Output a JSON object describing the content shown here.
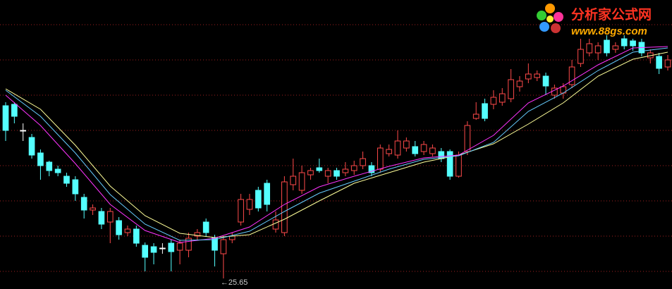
{
  "logo": {
    "name": "分析家公式网",
    "url": "www.88gs.com"
  },
  "chart_data": {
    "type": "candlestick",
    "ylim": [
      25.35,
      33.55
    ],
    "gridlines": [
      32.85,
      31.85,
      30.85,
      29.85,
      28.85,
      27.85,
      26.85,
      25.85
    ],
    "grid": true,
    "grid_color": "#a02020",
    "up_color": "#ff4a4a",
    "down_color": "#54ffff",
    "flat_color": "#ffffff",
    "annotations": [
      {
        "text": "←25.65",
        "value": 25.65
      }
    ],
    "open": [
      30.55,
      30.59,
      29.85,
      29.65,
      29.21,
      28.95,
      28.75,
      28.55,
      28.45,
      27.95,
      27.59,
      27.55,
      27.25,
      27.29,
      26.95,
      27.05,
      26.59,
      26.55,
      26.51,
      26.65,
      26.45,
      26.45,
      26.85,
      27.25,
      26.81,
      26.35,
      26.75,
      27.25,
      27.61,
      28.15,
      28.35,
      27.05,
      26.95,
      28.31,
      28.15,
      28.59,
      28.79,
      28.55,
      28.71,
      28.65,
      28.71,
      28.85,
      28.85,
      28.75,
      29.19,
      29.15,
      29.35,
      29.39,
      29.25,
      29.19,
      29.25,
      29.25,
      28.55,
      29.25,
      30.19,
      30.61,
      30.59,
      30.65,
      30.75,
      31.09,
      31.31,
      31.35,
      31.39,
      30.85,
      30.91,
      31.15,
      31.75,
      32.05,
      32.05,
      32.41,
      32.15,
      32.45,
      32.39,
      32.35,
      31.91,
      31.95,
      31.65
    ],
    "high": [
      30.65,
      30.65,
      30.05,
      29.75,
      29.31,
      28.99,
      28.85,
      28.65,
      28.55,
      28.05,
      27.75,
      27.65,
      27.65,
      27.39,
      27.15,
      27.15,
      26.67,
      26.65,
      26.65,
      26.75,
      26.75,
      26.95,
      27.05,
      27.35,
      26.89,
      26.85,
      26.95,
      28.05,
      28.05,
      28.25,
      28.45,
      27.55,
      28.55,
      29.05,
      28.85,
      28.79,
      29.05,
      28.79,
      28.79,
      28.95,
      28.99,
      29.25,
      28.95,
      29.45,
      29.45,
      29.85,
      29.65,
      29.55,
      29.55,
      29.45,
      29.35,
      29.31,
      29.25,
      30.11,
      30.65,
      30.75,
      30.99,
      31.05,
      31.59,
      31.39,
      31.75,
      31.55,
      31.49,
      31.15,
      31.19,
      31.85,
      32.45,
      32.45,
      32.35,
      32.55,
      32.35,
      32.55,
      32.45,
      32.45,
      32.15,
      32.05,
      31.99
    ],
    "low": [
      29.55,
      30.05,
      29.55,
      29.05,
      28.45,
      28.55,
      28.55,
      28.25,
      27.85,
      27.35,
      27.45,
      27.05,
      26.65,
      26.75,
      26.85,
      26.55,
      25.85,
      26.05,
      26.35,
      25.85,
      26.05,
      26.25,
      26.75,
      26.85,
      25.99,
      25.65,
      26.65,
      27.15,
      27.45,
      27.55,
      27.55,
      26.95,
      26.85,
      28.15,
      28.05,
      28.45,
      28.65,
      28.35,
      28.45,
      28.55,
      28.59,
      28.75,
      28.55,
      28.65,
      29.11,
      29.05,
      29.25,
      29.11,
      29.15,
      29.11,
      28.95,
      28.45,
      28.51,
      29.15,
      30.15,
      30.11,
      30.45,
      30.55,
      30.65,
      30.95,
      31.19,
      31.25,
      30.85,
      30.75,
      30.75,
      31.05,
      31.65,
      31.95,
      31.85,
      31.95,
      32.05,
      32.15,
      32.11,
      31.95,
      31.75,
      31.45,
      31.55
    ],
    "close": [
      29.85,
      30.25,
      29.85,
      29.15,
      28.85,
      28.71,
      28.65,
      28.35,
      28.05,
      27.59,
      27.65,
      27.19,
      27.55,
      26.89,
      27.05,
      26.65,
      26.25,
      26.39,
      26.51,
      26.41,
      26.65,
      26.79,
      26.95,
      26.95,
      26.45,
      26.75,
      26.85,
      27.89,
      27.89,
      27.65,
      27.75,
      27.31,
      28.39,
      28.55,
      28.65,
      28.71,
      28.71,
      28.71,
      28.55,
      28.75,
      28.85,
      29.05,
      28.65,
      29.35,
      29.31,
      29.55,
      29.55,
      29.19,
      29.45,
      29.35,
      29.05,
      28.55,
      29.15,
      29.99,
      30.31,
      30.19,
      30.79,
      30.89,
      31.29,
      31.25,
      31.45,
      31.45,
      31.11,
      31.05,
      31.09,
      31.65,
      32.15,
      32.31,
      32.25,
      32.05,
      32.25,
      32.25,
      32.25,
      32.05,
      32.05,
      31.61,
      31.85
    ],
    "series": [
      {
        "color": "#ffff99",
        "x": [
          0,
          4,
          8,
          12,
          16,
          20,
          24,
          28,
          32,
          36,
          40,
          44,
          48,
          52,
          56,
          60,
          64,
          68,
          72,
          76
        ],
        "values": [
          31.03,
          30.45,
          29.43,
          28.27,
          27.43,
          26.93,
          26.81,
          26.89,
          27.33,
          27.85,
          28.35,
          28.65,
          28.95,
          29.15,
          29.47,
          30.03,
          30.63,
          31.39,
          31.87,
          32.07
        ]
      },
      {
        "color": "#ff33ff",
        "x": [
          0,
          4,
          8,
          12,
          16,
          20,
          24,
          28,
          32,
          36,
          40,
          44,
          48,
          52,
          56,
          60,
          64,
          68,
          72,
          76
        ],
        "values": [
          30.85,
          29.99,
          28.91,
          27.75,
          27.01,
          26.67,
          26.79,
          27.11,
          27.75,
          28.25,
          28.55,
          28.83,
          29.07,
          29.15,
          29.71,
          30.63,
          31.11,
          31.71,
          32.19,
          32.23
        ]
      },
      {
        "color": "#66ccff",
        "x": [
          0,
          4,
          8,
          12,
          16,
          20,
          24,
          28,
          32,
          36,
          40,
          44,
          48,
          52,
          56,
          60,
          64,
          68,
          72,
          76
        ],
        "values": [
          30.99,
          30.25,
          29.21,
          28.03,
          27.19,
          26.73,
          26.75,
          26.99,
          27.55,
          28.07,
          28.41,
          28.75,
          29.03,
          29.13,
          29.51,
          30.39,
          30.91,
          31.55,
          32.07,
          32.19
        ]
      }
    ]
  }
}
